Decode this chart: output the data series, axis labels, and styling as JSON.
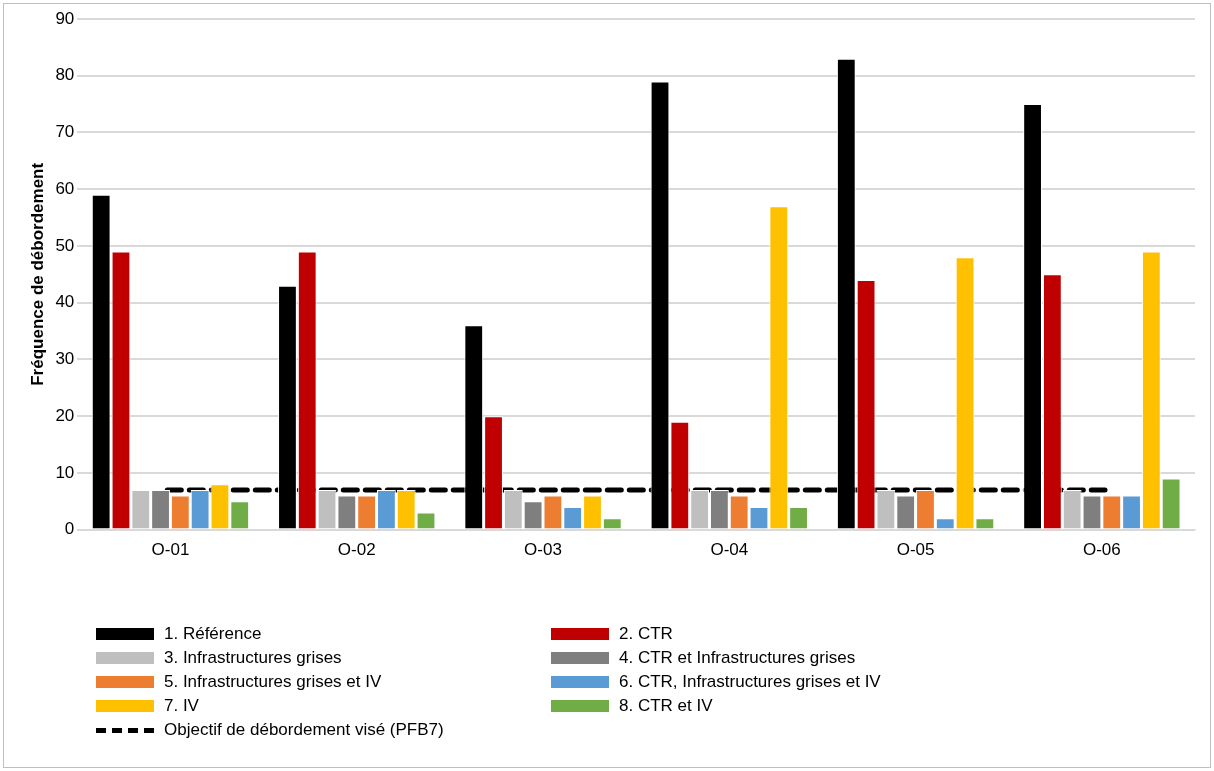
{
  "chart_data": {
    "type": "bar",
    "ylabel": "Fréquence de débordement",
    "categories": [
      "O-01",
      "O-02",
      "O-03",
      "O-04",
      "O-05",
      "O-06"
    ],
    "series": [
      {
        "name": "1. Référence",
        "color": "#000000",
        "values": [
          59,
          43,
          36,
          79,
          83,
          75
        ]
      },
      {
        "name": "2. CTR",
        "color": "#c00000",
        "values": [
          49,
          49,
          20,
          19,
          44,
          45
        ]
      },
      {
        "name": "3. Infrastructures grises",
        "color": "#bfbfbf",
        "values": [
          7,
          7,
          7,
          7,
          7,
          7
        ]
      },
      {
        "name": "4. CTR et Infrastructures grises",
        "color": "#7f7f7f",
        "values": [
          7,
          6,
          5,
          7,
          6,
          6
        ]
      },
      {
        "name": "5. Infrastructures grises et IV",
        "color": "#ed7d31",
        "values": [
          6,
          6,
          6,
          6,
          7,
          6
        ]
      },
      {
        "name": "6. CTR, Infrastructures grises et IV",
        "color": "#5b9bd5",
        "values": [
          7,
          7,
          4,
          4,
          2,
          6
        ]
      },
      {
        "name": "7. IV",
        "color": "#ffc000",
        "values": [
          8,
          7,
          6,
          57,
          48,
          49
        ]
      },
      {
        "name": "8. CTR et IV",
        "color": "#70ad47",
        "values": [
          5,
          3,
          2,
          4,
          2,
          9
        ]
      }
    ],
    "ylim": [
      0,
      90
    ],
    "yticks": [
      0,
      10,
      20,
      30,
      40,
      50,
      60,
      70,
      80,
      90
    ],
    "grid": "y",
    "legend": "bottom",
    "ref_lines": [
      {
        "axis": "y",
        "value": 7,
        "label": "Objectif de débordement visé (PFB7)",
        "color": "#000000",
        "line_style": "dashed"
      }
    ]
  }
}
